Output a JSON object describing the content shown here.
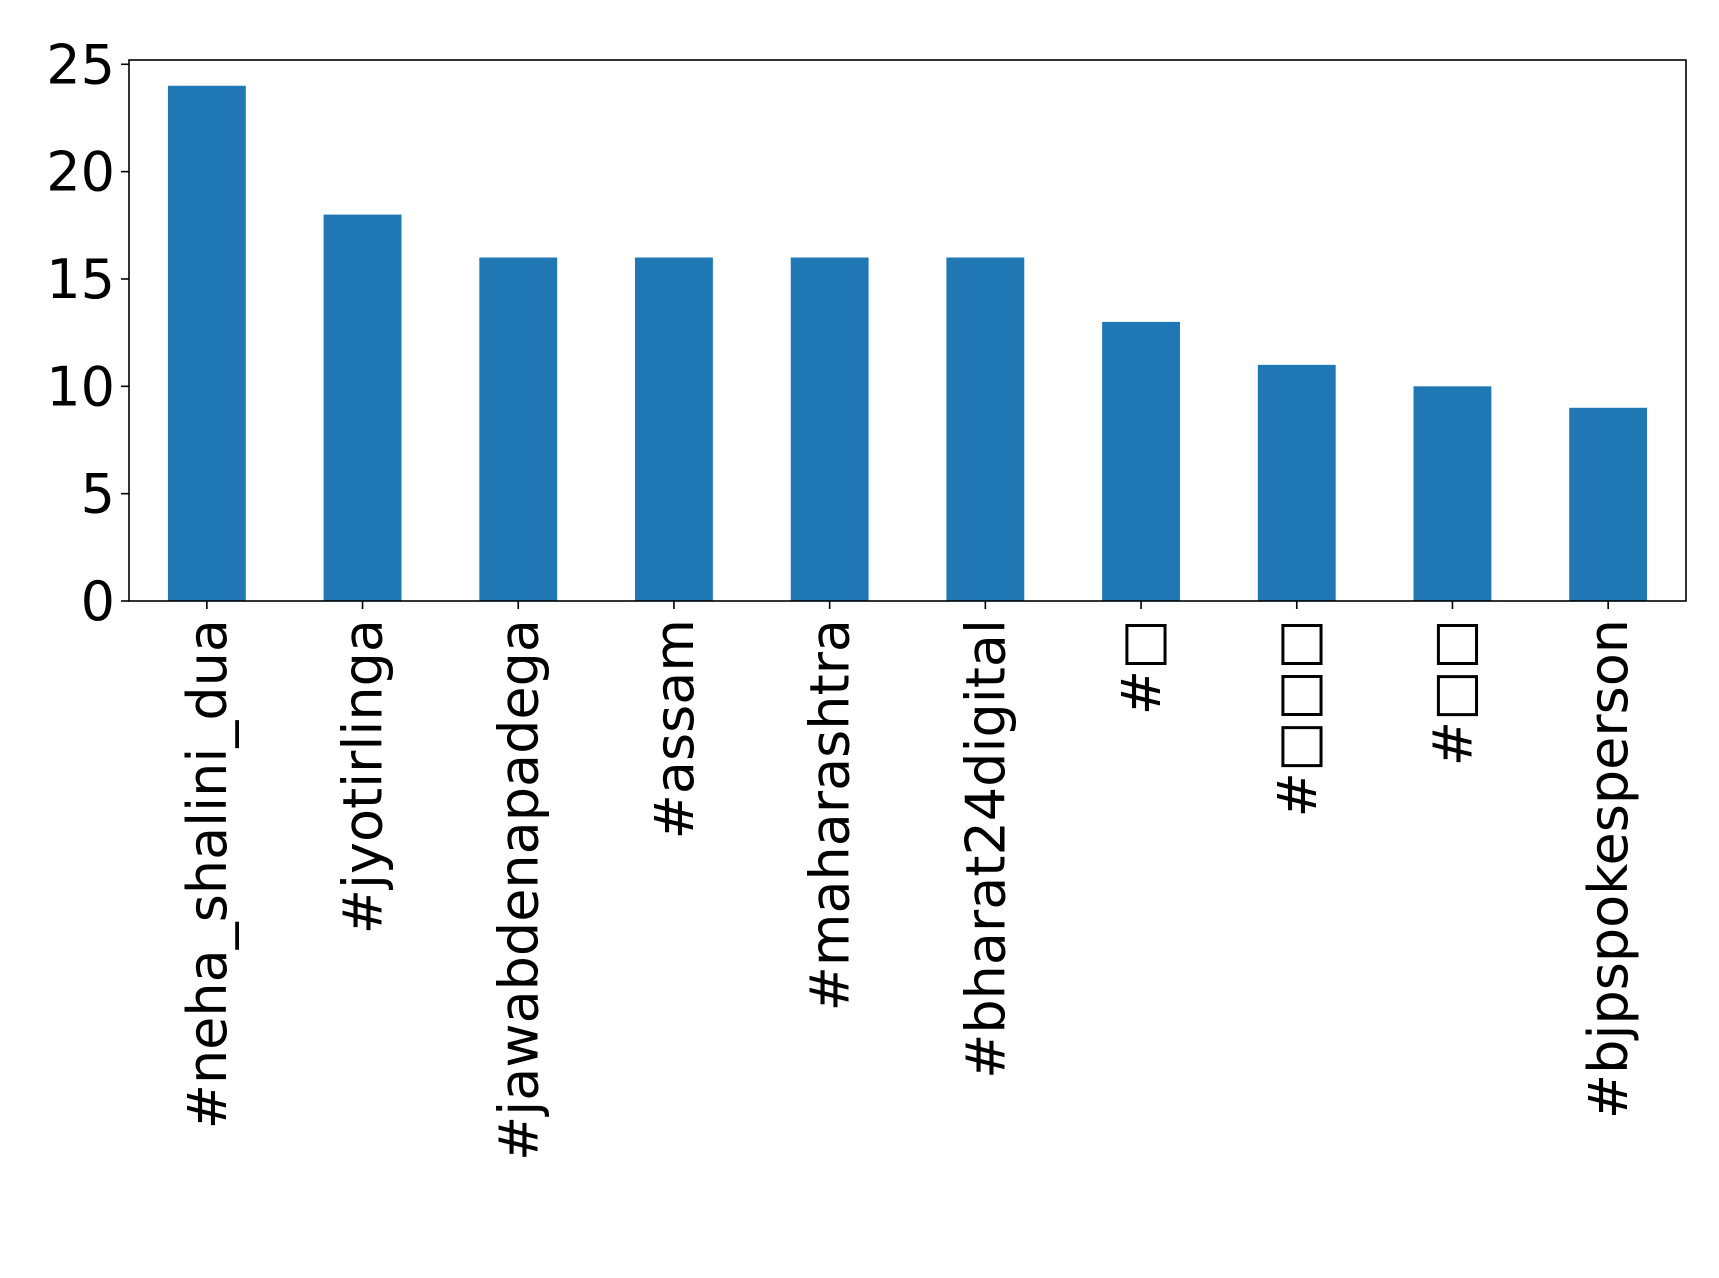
{
  "chart_data": {
    "type": "bar",
    "categories": [
      "#neha_shalini_dua",
      "#jyotirlinga",
      "#jawabdenapadega",
      "#assam",
      "#maharashtra",
      "#bharat24digital",
      "#□",
      "#□□□",
      "#□□",
      "#bjpspokesperson"
    ],
    "values": [
      24,
      18,
      16,
      16,
      16,
      16,
      13,
      11,
      10,
      9
    ],
    "title": "",
    "xlabel": "",
    "ylabel": "",
    "ylim": [
      0,
      25.2
    ],
    "yticks": [
      0,
      5,
      10,
      15,
      20,
      25
    ],
    "grid": false,
    "legend": "none",
    "bar_color": "#1f77b4"
  }
}
